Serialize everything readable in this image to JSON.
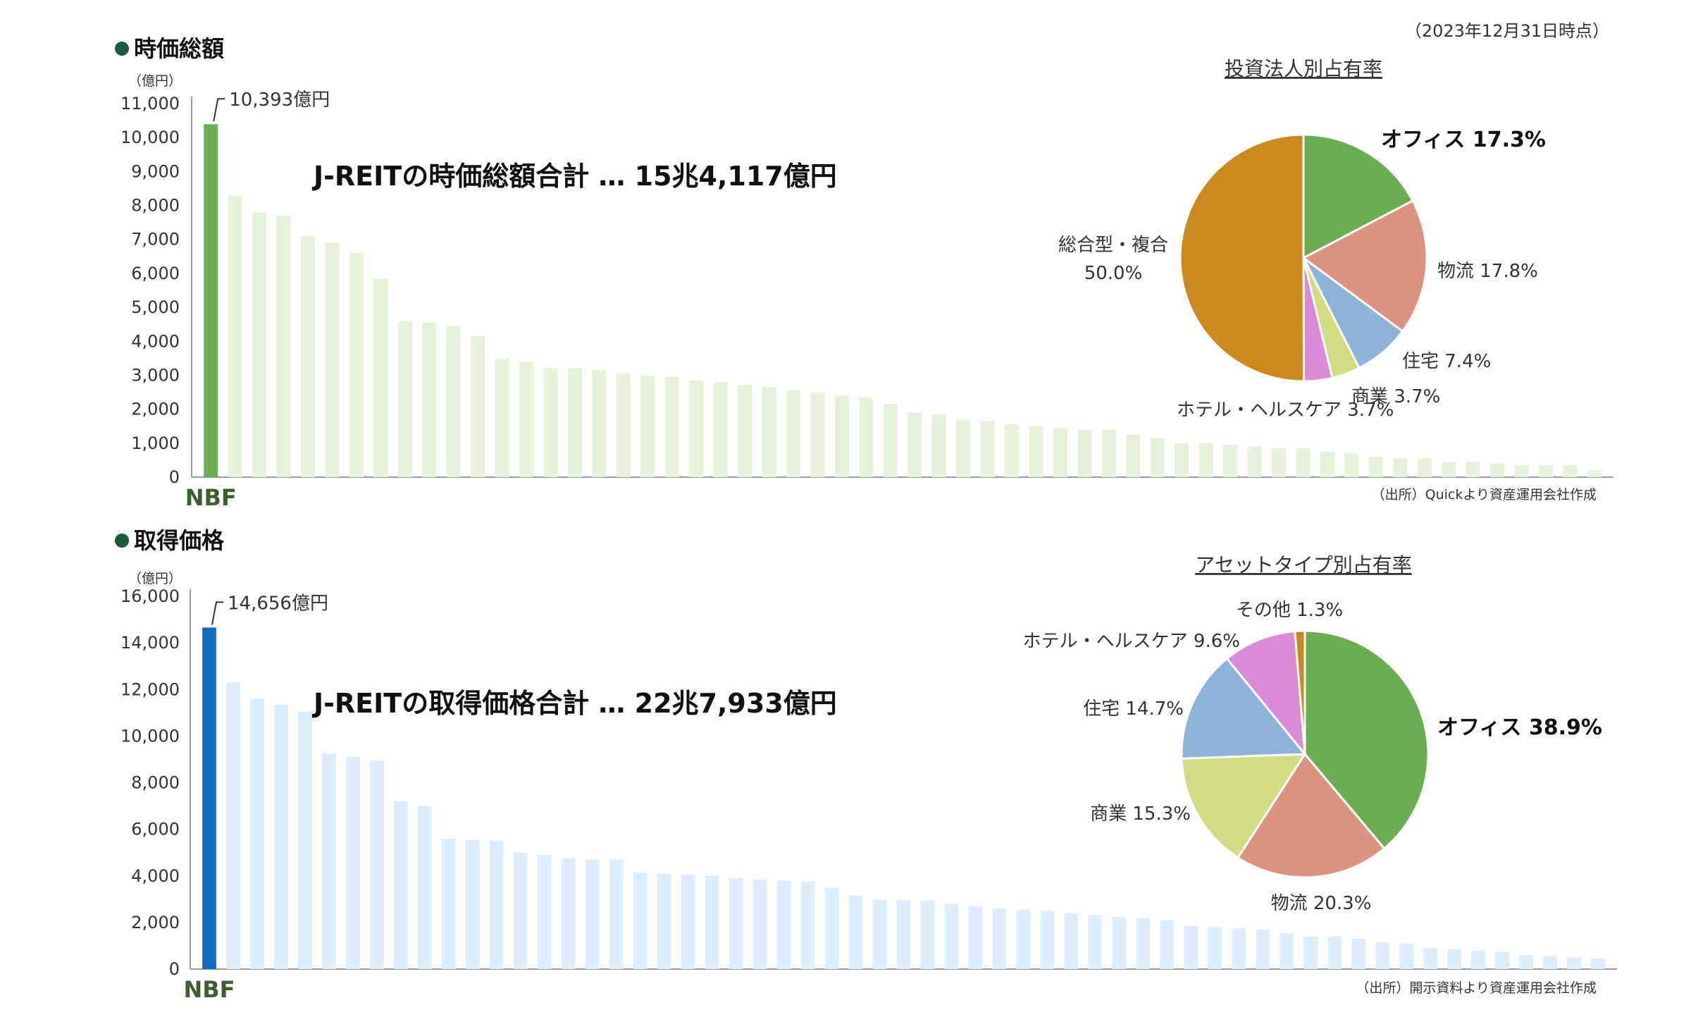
{
  "as_of": "（2023年12月31日時点）",
  "chart_data": [
    {
      "type": "bar",
      "section_title": "時価総額",
      "unit_label": "（億円）",
      "ylim": [
        0,
        11000
      ],
      "yticks": [
        "0",
        "1,000",
        "2,000",
        "3,000",
        "4,000",
        "5,000",
        "6,000",
        "7,000",
        "8,000",
        "9,000",
        "10,000",
        "11,000"
      ],
      "values": [
        10393,
        8300,
        7800,
        7700,
        7100,
        6900,
        6600,
        5850,
        4600,
        4550,
        4450,
        4150,
        3500,
        3400,
        3200,
        3200,
        3150,
        3050,
        3000,
        2950,
        2850,
        2800,
        2700,
        2650,
        2550,
        2500,
        2400,
        2350,
        2150,
        1900,
        1850,
        1700,
        1650,
        1550,
        1500,
        1450,
        1400,
        1400,
        1250,
        1150,
        1000,
        1000,
        950,
        900,
        850,
        850,
        750,
        700,
        600,
        550,
        550,
        450,
        450,
        400,
        350,
        350,
        350,
        200
      ],
      "highlight_label": "10,393億円",
      "highlight_category": "NBF",
      "highlight_color": "#6aae54",
      "bar_color": "#e6f2d9",
      "headline": "J-REITの時価総額合計 … 15兆4,117億円",
      "source": "（出所）Quickより資産運用会社作成",
      "grid": false
    },
    {
      "type": "pie",
      "title": "投資法人別占有率",
      "labels": [
        "オフィス 17.3%",
        "物流 17.8%",
        "住宅 7.4%",
        "商業 3.7%",
        "ホテル・ヘルスケア 3.7%",
        "総合型・複合",
        "50.0%"
      ],
      "slices": [
        {
          "name": "オフィス",
          "value": 17.3,
          "color": "#6aae54"
        },
        {
          "name": "物流",
          "value": 17.8,
          "color": "#d99380"
        },
        {
          "name": "住宅",
          "value": 7.4,
          "color": "#8db4d8"
        },
        {
          "name": "商業",
          "value": 3.7,
          "color": "#d3dc82"
        },
        {
          "name": "ホテル・ヘルスケア",
          "value": 3.7,
          "color": "#d98bd6"
        },
        {
          "name": "総合型・複合",
          "value": 50.0,
          "color": "#cb8a1d"
        }
      ]
    },
    {
      "type": "bar",
      "section_title": "取得価格",
      "unit_label": "（億円）",
      "ylim": [
        0,
        16000
      ],
      "yticks": [
        "0",
        "2,000",
        "4,000",
        "6,000",
        "8,000",
        "10,000",
        "12,000",
        "14,000",
        "16,000"
      ],
      "values": [
        14656,
        12300,
        11600,
        11350,
        11050,
        9250,
        9100,
        8950,
        7200,
        7000,
        5600,
        5550,
        5500,
        5000,
        4900,
        4750,
        4700,
        4700,
        4150,
        4100,
        4050,
        4000,
        3900,
        3850,
        3800,
        3750,
        3500,
        3150,
        3000,
        2950,
        2950,
        2800,
        2700,
        2600,
        2550,
        2500,
        2400,
        2300,
        2250,
        2200,
        2100,
        1850,
        1800,
        1750,
        1700,
        1550,
        1400,
        1400,
        1300,
        1150,
        1100,
        900,
        850,
        800,
        750,
        600,
        550,
        500,
        450
      ],
      "highlight_label": "14,656億円",
      "highlight_category": "NBF",
      "highlight_color": "#0f6bbd",
      "bar_color": "#ddeefc",
      "headline": "J-REITの取得価格合計 … 22兆7,933億円",
      "source": "（出所）開示資料より資産運用会社作成",
      "grid": false
    },
    {
      "type": "pie",
      "title": "アセットタイプ別占有率",
      "labels": [
        "オフィス 38.9%",
        "物流 20.3%",
        "商業 15.3%",
        "住宅 14.7%",
        "ホテル・ヘルスケア 9.6%",
        "その他 1.3%"
      ],
      "slices": [
        {
          "name": "オフィス",
          "value": 38.9,
          "color": "#6aae54"
        },
        {
          "name": "物流",
          "value": 20.3,
          "color": "#d99380"
        },
        {
          "name": "商業",
          "value": 15.3,
          "color": "#d3dc82"
        },
        {
          "name": "住宅",
          "value": 14.7,
          "color": "#8db4d8"
        },
        {
          "name": "ホテル・ヘルスケア",
          "value": 9.6,
          "color": "#d98bd6"
        },
        {
          "name": "その他",
          "value": 1.3,
          "color": "#cb8a1d"
        }
      ]
    }
  ],
  "colors": {
    "section_dot": "#1d5a3e",
    "nbf_label": "#3f5e2f",
    "axis": "#999999"
  }
}
